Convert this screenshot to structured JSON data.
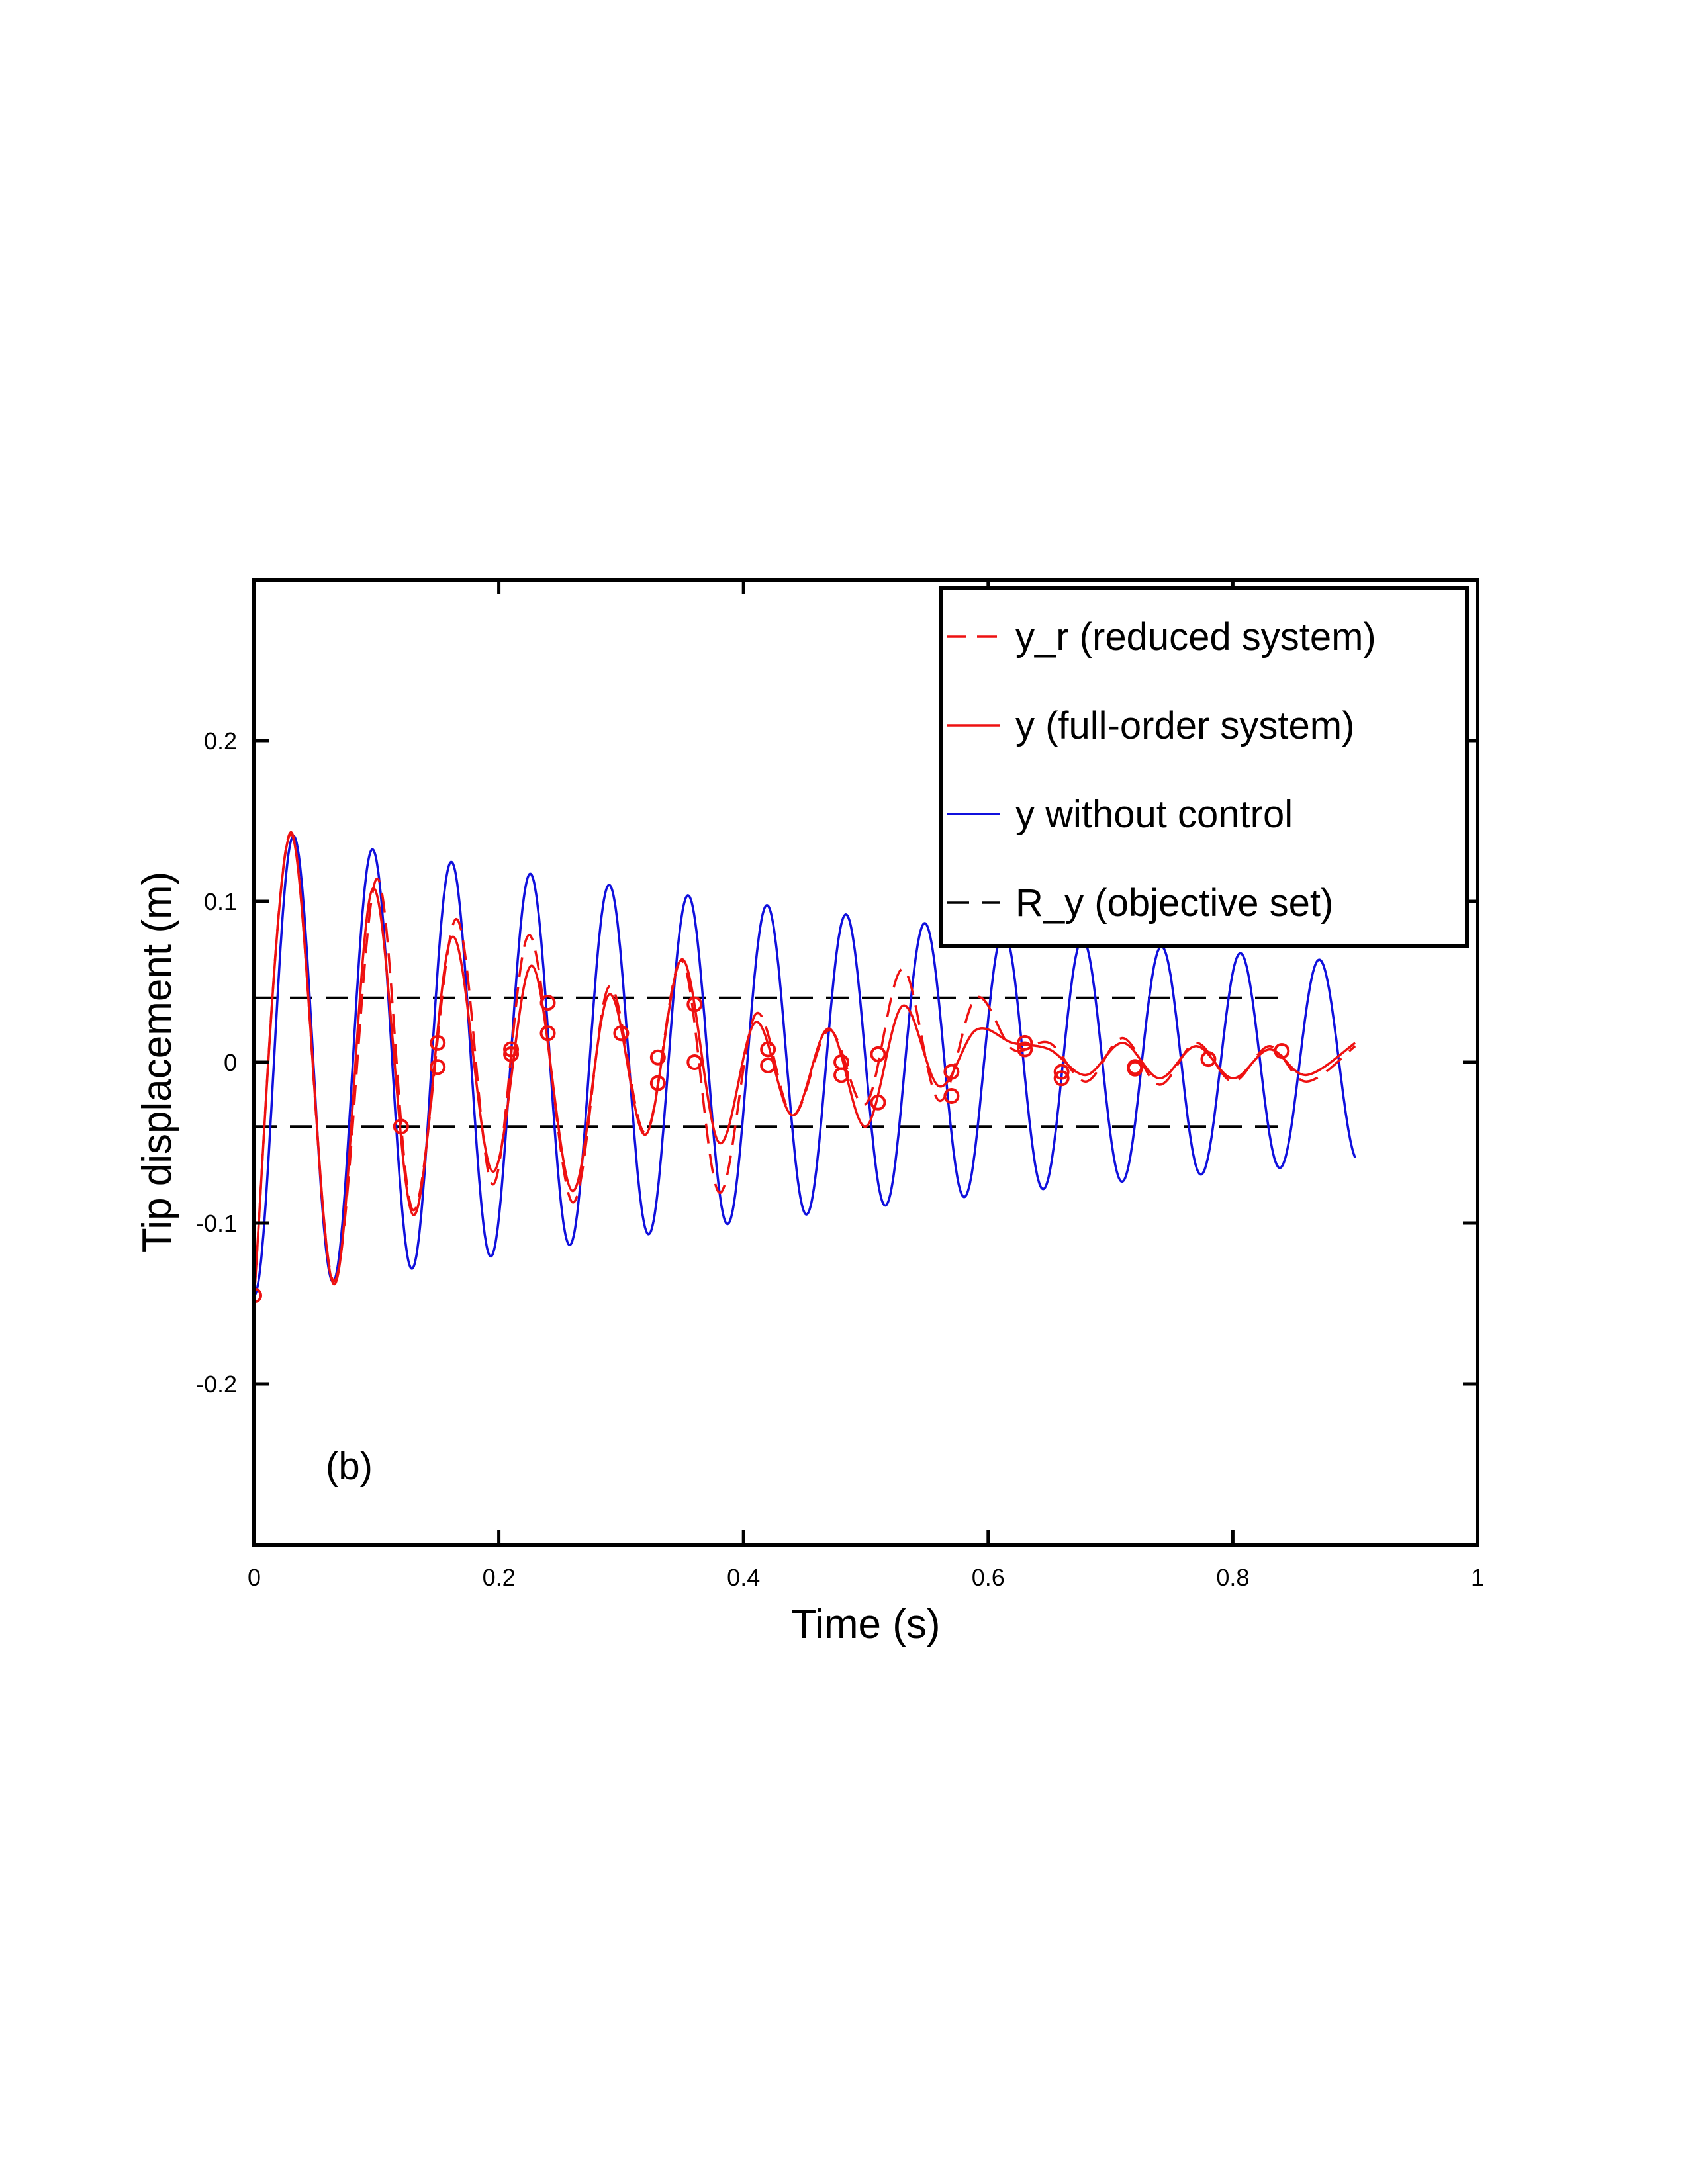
{
  "chart_data": {
    "type": "line",
    "xlabel": "Time (s)",
    "ylabel": "Tip displacement (m)",
    "xlim": [
      0,
      1
    ],
    "ylim": [
      -0.3,
      0.3
    ],
    "xticks": [
      0,
      0.2,
      0.4,
      0.6,
      0.8,
      1
    ],
    "xtick_labels": [
      "0",
      "0.2",
      "0.4",
      "0.6",
      "0.8",
      "1"
    ],
    "yticks": [
      -0.2,
      -0.1,
      0,
      0.1,
      0.2
    ],
    "ytick_labels": [
      "-0.2",
      "-0.1",
      "0",
      "0.1",
      "0.2"
    ],
    "grid": false,
    "legend_position": "top-right",
    "annotation": "(b)",
    "colors": {
      "red": "#ee1111",
      "blue": "#1010dd",
      "black": "#000000"
    },
    "series": [
      {
        "name": "y_r (reduced system)",
        "style": "dashed",
        "color": "#ee1111",
        "x": [
          0.0,
          0.03,
          0.065,
          0.1,
          0.13,
          0.165,
          0.195,
          0.225,
          0.26,
          0.29,
          0.32,
          0.35,
          0.38,
          0.41,
          0.44,
          0.47,
          0.5,
          0.53,
          0.56,
          0.59,
          0.62,
          0.65,
          0.68,
          0.71,
          0.74,
          0.77,
          0.8,
          0.83,
          0.86,
          0.9
        ],
        "y": [
          -0.145,
          0.143,
          -0.136,
          0.114,
          -0.092,
          0.089,
          -0.076,
          0.079,
          -0.087,
          0.047,
          -0.044,
          0.063,
          -0.081,
          0.03,
          -0.033,
          0.02,
          -0.026,
          0.058,
          -0.024,
          0.04,
          0.008,
          0.012,
          -0.012,
          0.015,
          -0.014,
          0.012,
          -0.012,
          0.01,
          -0.012,
          0.01
        ]
      },
      {
        "name": "y (full-order system)",
        "style": "solid",
        "color": "#ee1111",
        "x": [
          0.0,
          0.03,
          0.065,
          0.097,
          0.13,
          0.162,
          0.195,
          0.227,
          0.26,
          0.29,
          0.32,
          0.35,
          0.38,
          0.41,
          0.44,
          0.47,
          0.5,
          0.53,
          0.56,
          0.59,
          0.62,
          0.65,
          0.68,
          0.71,
          0.74,
          0.77,
          0.8,
          0.83,
          0.86,
          0.9
        ],
        "y": [
          -0.145,
          0.142,
          -0.138,
          0.108,
          -0.095,
          0.078,
          -0.068,
          0.06,
          -0.08,
          0.042,
          -0.045,
          0.064,
          -0.05,
          0.025,
          -0.033,
          0.021,
          -0.04,
          0.035,
          -0.015,
          0.02,
          0.012,
          0.008,
          -0.008,
          0.012,
          -0.01,
          0.01,
          -0.01,
          0.008,
          -0.008,
          0.012
        ]
      },
      {
        "name": "y without control",
        "style": "solid",
        "color": "#1010dd",
        "envelope_start": 0.145,
        "envelope_end": 0.062,
        "period": 0.0645,
        "x_start": 0.0,
        "x_end": 0.9
      },
      {
        "name": "R_y (objective set)",
        "style": "dashed",
        "color": "#000000",
        "x": [
          0.0,
          0.84
        ],
        "upper": 0.04,
        "lower": -0.04
      }
    ],
    "markers": {
      "color": "#ee1111",
      "shape": "circle",
      "points": [
        [
          0.0,
          -0.145
        ],
        [
          0.12,
          -0.04
        ],
        [
          0.15,
          0.012
        ],
        [
          0.15,
          -0.003
        ],
        [
          0.21,
          0.008
        ],
        [
          0.21,
          0.005
        ],
        [
          0.24,
          0.037
        ],
        [
          0.24,
          0.018
        ],
        [
          0.3,
          0.018
        ],
        [
          0.33,
          0.003
        ],
        [
          0.33,
          -0.013
        ],
        [
          0.36,
          0.036
        ],
        [
          0.36,
          0.0
        ],
        [
          0.42,
          0.008
        ],
        [
          0.42,
          -0.002
        ],
        [
          0.48,
          0.0
        ],
        [
          0.48,
          -0.008
        ],
        [
          0.51,
          0.005
        ],
        [
          0.51,
          -0.025
        ],
        [
          0.57,
          -0.006
        ],
        [
          0.57,
          -0.021
        ],
        [
          0.63,
          0.012
        ],
        [
          0.63,
          0.008
        ],
        [
          0.66,
          -0.006
        ],
        [
          0.66,
          -0.01
        ],
        [
          0.72,
          -0.003
        ],
        [
          0.72,
          -0.004
        ],
        [
          0.78,
          0.002
        ],
        [
          0.84,
          0.007
        ]
      ]
    }
  }
}
